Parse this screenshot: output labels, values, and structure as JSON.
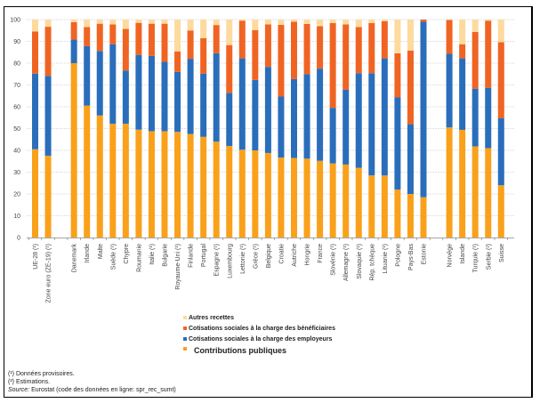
{
  "chart_data": {
    "type": "bar",
    "stacked": true,
    "title": "",
    "xlabel": "",
    "ylabel": "",
    "ylim": [
      0,
      100
    ],
    "yticks": [
      0,
      10,
      20,
      30,
      40,
      50,
      60,
      70,
      80,
      90,
      100
    ],
    "grid": true,
    "legend_position": "bottom",
    "groups": [
      [
        "UE-28 (¹)",
        "Zone euro (ZE-19) (¹)"
      ],
      [
        "Danemark",
        "Irlande",
        "Malte",
        "Suède (¹)",
        "Chypre",
        "Roumanie",
        "Italie (¹)",
        "Bulgarie",
        "Royaume-Uni (¹)",
        "Finlande",
        "Portugal",
        "Espagne (¹)",
        "Luxembourg",
        "Lettonie (¹)",
        "Grèce (¹)",
        "Belgique",
        "Croatie",
        "Autriche",
        "Hongrie",
        "France",
        "Slovénie (¹)",
        "Allemagne (¹)",
        "Slovaquie (¹)",
        "Rép. tchèque",
        "Lituanie (¹)",
        "Pologne",
        "Pays-Bas",
        "Estonie"
      ],
      [
        "Norvège",
        "Islande",
        "Turquie (¹)",
        "Serbie (²)",
        "Suisse"
      ]
    ],
    "categories": [
      "UE-28 (¹)",
      "Zone euro (ZE-19) (¹)",
      "Danemark",
      "Irlande",
      "Malte",
      "Suède (¹)",
      "Chypre",
      "Roumanie",
      "Italie (¹)",
      "Bulgarie",
      "Royaume-Uni (¹)",
      "Finlande",
      "Portugal",
      "Espagne (¹)",
      "Luxembourg",
      "Lettonie (¹)",
      "Grèce (¹)",
      "Belgique",
      "Croatie",
      "Autriche",
      "Hongrie",
      "France",
      "Slovénie (¹)",
      "Allemagne (¹)",
      "Slovaquie (¹)",
      "Rép. tchèque",
      "Lituanie (¹)",
      "Pologne",
      "Pays-Bas",
      "Estonie",
      "Norvège",
      "Islande",
      "Turquie (¹)",
      "Serbie (²)",
      "Suisse"
    ],
    "series": [
      {
        "name": "Contributions publiques",
        "color": "#F9A11B",
        "values": [
          40.5,
          37.5,
          80.0,
          60.5,
          56.0,
          52.2,
          52.2,
          49.5,
          48.8,
          48.8,
          48.5,
          47.5,
          46.2,
          44.0,
          42.0,
          40.3,
          40.0,
          38.8,
          36.7,
          36.5,
          36.2,
          35.2,
          34.0,
          33.5,
          32.0,
          28.5,
          28.5,
          22.0,
          20.0,
          18.5,
          50.5,
          49.4,
          41.8,
          41.0,
          24.0
        ]
      },
      {
        "name": "Cotisations sociales à la charge des employeurs",
        "color": "#2A6EBB",
        "values": [
          34.7,
          36.7,
          10.8,
          27.3,
          29.6,
          36.5,
          24.4,
          34.3,
          34.5,
          31.8,
          27.5,
          34.5,
          29.0,
          40.6,
          24.4,
          41.9,
          32.3,
          39.5,
          28.0,
          36.2,
          38.8,
          42.3,
          25.5,
          34.4,
          43.4,
          46.9,
          53.7,
          42.3,
          32.0,
          80.5,
          33.8,
          32.8,
          26.5,
          27.7,
          30.7
        ]
      },
      {
        "name": "Cotisations sociales à la charge des bénéficiaires",
        "color": "#F06423",
        "values": [
          19.3,
          22.5,
          8.0,
          8.8,
          12.5,
          9.1,
          19.1,
          14.7,
          14.8,
          17.5,
          9.4,
          13.0,
          16.3,
          12.9,
          21.9,
          17.3,
          22.9,
          19.5,
          32.9,
          26.3,
          23.0,
          19.5,
          38.9,
          29.9,
          21.2,
          23.0,
          17.1,
          20.2,
          33.8,
          1.0,
          15.5,
          6.5,
          26.0,
          30.8,
          34.9
        ]
      },
      {
        "name": "Autres recettes",
        "color": "#FDDA9E",
        "values": [
          5.5,
          3.3,
          1.2,
          3.4,
          1.9,
          2.2,
          4.3,
          1.5,
          1.9,
          1.9,
          14.6,
          5.0,
          8.5,
          2.5,
          11.7,
          0.5,
          4.8,
          2.2,
          2.4,
          1.0,
          2.0,
          3.0,
          1.6,
          2.2,
          3.4,
          1.6,
          0.7,
          15.5,
          14.2,
          0.0,
          0.2,
          11.3,
          5.7,
          0.5,
          10.4
        ]
      }
    ]
  },
  "legend": {
    "items": [
      {
        "label": "Autres recettes",
        "color": "#FDDA9E"
      },
      {
        "label": "Cotisations sociales à la charge des bénéficiaires",
        "color": "#F06423"
      },
      {
        "label": "Cotisations sociales à la charge des employeurs",
        "color": "#2A6EBB"
      },
      {
        "label": "Contributions publiques",
        "color": "#F9A11B"
      }
    ]
  },
  "notes": {
    "note1": "(¹) Données provisoires.",
    "note2": "(²) Estimations.",
    "source_label": "Source:",
    "source_text": " Eurostat (code des données en ligne: spr_rec_sumt)"
  }
}
